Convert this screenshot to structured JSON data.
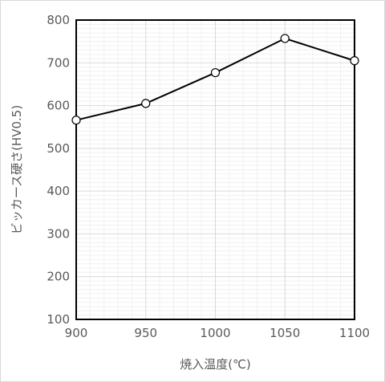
{
  "chart_data": {
    "type": "line",
    "title": "",
    "xlabel": "焼入温度(℃)",
    "ylabel": "ビッカース硬さ(HV0.5)",
    "x": [
      900,
      950,
      1000,
      1050,
      1100
    ],
    "series": [
      {
        "values": [
          566,
          605,
          677,
          757,
          705
        ]
      }
    ],
    "xlim": [
      900,
      1100
    ],
    "ylim": [
      100,
      800
    ],
    "xticks": [
      "900",
      "950",
      "1000",
      "1050",
      "1100"
    ],
    "yticks": [
      "100",
      "200",
      "300",
      "400",
      "500",
      "600",
      "700",
      "800"
    ],
    "grid": true,
    "legend": "none",
    "colors": {
      "line": "#000000",
      "marker_fill": "#ffffff",
      "grid_major": "#d9d9d9",
      "grid_minor": "#f0f0f0",
      "axis": "#000000"
    }
  }
}
